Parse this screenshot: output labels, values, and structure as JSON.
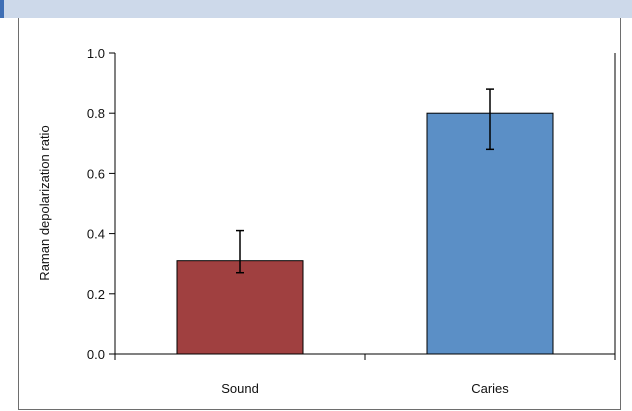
{
  "chart_data": {
    "type": "bar",
    "categories": [
      "Sound",
      "Caries"
    ],
    "values": [
      0.31,
      0.8
    ],
    "error_low": [
      0.27,
      0.68
    ],
    "error_high": [
      0.41,
      0.88
    ],
    "bar_colors": [
      "#a04040",
      "#5b8fc6"
    ],
    "ylabel": "Raman depolarization ratio",
    "ylim": [
      0.0,
      1.0
    ],
    "yticks": [
      "0.0",
      "0.2",
      "0.4",
      "0.6",
      "0.8",
      "1.0"
    ],
    "ytick_values": [
      0.0,
      0.2,
      0.4,
      0.6,
      0.8,
      1.0
    ],
    "grid": false,
    "legend": "none"
  }
}
